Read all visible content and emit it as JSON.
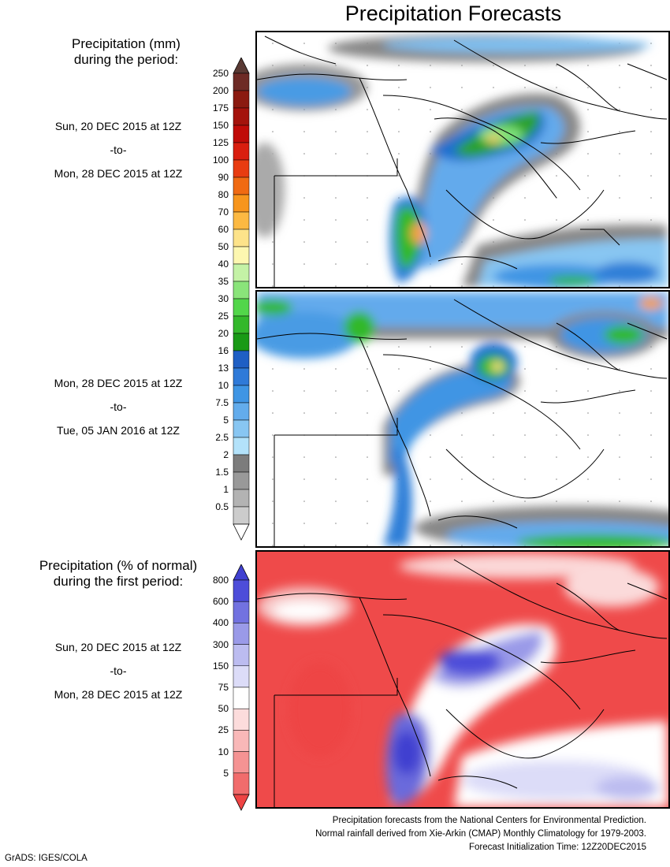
{
  "title": "Precipitation Forecasts",
  "mm_legend": {
    "header_line1": "Precipitation (mm)",
    "header_line2": "during the period:",
    "labels": [
      "250",
      "200",
      "175",
      "150",
      "125",
      "100",
      "90",
      "80",
      "70",
      "60",
      "50",
      "40",
      "35",
      "30",
      "25",
      "20",
      "16",
      "13",
      "10",
      "7.5",
      "5",
      "2.5",
      "2",
      "1.5",
      "1",
      "0.5"
    ],
    "colors": [
      "#6e2b26",
      "#8b1a10",
      "#a4130c",
      "#c00b08",
      "#d91e0f",
      "#e83c10",
      "#f06a12",
      "#f7951c",
      "#fcb942",
      "#fde38a",
      "#fdf7b0",
      "#c4f2a6",
      "#8ae47a",
      "#52d64a",
      "#33b82b",
      "#199a16",
      "#1f5fc4",
      "#2f7ad8",
      "#3f95e4",
      "#63acec",
      "#88c6f2",
      "#b3e2fa",
      "#7c7c7c",
      "#999999",
      "#b3b3b3",
      "#cccccc"
    ],
    "top_arrow_color": "#5a3a34",
    "bottom_arrow_color": "#ffffff"
  },
  "period1": {
    "from": "Sun, 20 DEC 2015 at 12Z",
    "sep": "-to-",
    "to": "Mon, 28 DEC 2015 at 12Z"
  },
  "period2": {
    "from": "Mon, 28 DEC 2015 at 12Z",
    "sep": "-to-",
    "to": "Tue, 05 JAN 2016 at 12Z"
  },
  "pct_legend": {
    "header_line1": "Precipitation (% of normal)",
    "header_line2": "during the first period:",
    "labels": [
      "800",
      "600",
      "400",
      "300",
      "150",
      "75",
      "50",
      "25",
      "10",
      "5"
    ],
    "colors": [
      "#4d4dd9",
      "#7272e0",
      "#9a9ae8",
      "#bcbcf0",
      "#dcdcf8",
      "#ffffff",
      "#fcdcdc",
      "#f9b8b8",
      "#f59393",
      "#f16c6c"
    ],
    "top_arrow_color": "#4040d0",
    "bottom_arrow_color": "#ee4444"
  },
  "period3": {
    "from": "Sun, 20 DEC 2015 at 12Z",
    "sep": "-to-",
    "to": "Mon, 28 DEC 2015 at 12Z"
  },
  "footer": {
    "line1": "Precipitation forecasts from the National Centers for Environmental Prediction.",
    "line2": "Normal rainfall derived from Xie-Arkin (CMAP) Monthly Climatology for 1979-2003.",
    "line3": "Forecast Initialization Time: 12Z20DEC2015"
  },
  "credit": "GrADS: IGES/COLA"
}
